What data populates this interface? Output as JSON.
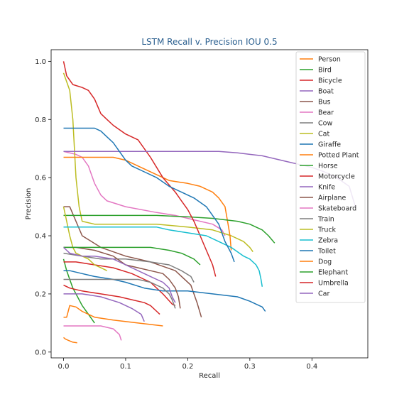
{
  "chart_data": {
    "type": "line",
    "title": "LSTM Recall v. Precision IOU 0.5",
    "xlabel": "Recall",
    "ylabel": "Precision",
    "xlim": [
      -0.02,
      0.49
    ],
    "ylim": [
      -0.02,
      1.04
    ],
    "xticks": [
      "0.0",
      "0.1",
      "0.2",
      "0.3",
      "0.4"
    ],
    "yticks": [
      "0.0",
      "0.2",
      "0.4",
      "0.6",
      "0.8",
      "1.0"
    ],
    "legend_position": "top-right",
    "grid": false,
    "series": [
      {
        "name": "Person",
        "color": "#ff7f0e",
        "points": [
          [
            0,
            0.05
          ],
          [
            0.003,
            0.045
          ],
          [
            0.008,
            0.04
          ],
          [
            0.015,
            0.034
          ],
          [
            0.022,
            0.032
          ]
        ]
      },
      {
        "name": "Bird",
        "color": "#2ca02c",
        "points": [
          [
            0,
            0.32
          ],
          [
            0.005,
            0.28
          ],
          [
            0.01,
            0.25
          ],
          [
            0.015,
            0.22
          ],
          [
            0.02,
            0.2
          ],
          [
            0.03,
            0.16
          ],
          [
            0.04,
            0.13
          ],
          [
            0.05,
            0.1
          ]
        ]
      },
      {
        "name": "Bicycle",
        "color": "#d62728",
        "points": [
          [
            0,
            0.31
          ],
          [
            0.02,
            0.31
          ],
          [
            0.05,
            0.3
          ],
          [
            0.08,
            0.29
          ],
          [
            0.11,
            0.27
          ],
          [
            0.14,
            0.24
          ],
          [
            0.16,
            0.2
          ],
          [
            0.175,
            0.165
          ],
          [
            0.18,
            0.16
          ]
        ]
      },
      {
        "name": "Boat",
        "color": "#9467bd",
        "points": [
          [
            0,
            0.2
          ],
          [
            0.03,
            0.2
          ],
          [
            0.06,
            0.19
          ],
          [
            0.09,
            0.17
          ],
          [
            0.11,
            0.15
          ],
          [
            0.125,
            0.13
          ],
          [
            0.13,
            0.105
          ]
        ]
      },
      {
        "name": "Bus",
        "color": "#8c564b",
        "points": [
          [
            0,
            0.5
          ],
          [
            0.01,
            0.5
          ],
          [
            0.03,
            0.4
          ],
          [
            0.06,
            0.36
          ],
          [
            0.1,
            0.33
          ],
          [
            0.14,
            0.31
          ],
          [
            0.18,
            0.28
          ],
          [
            0.205,
            0.23
          ],
          [
            0.215,
            0.17
          ],
          [
            0.222,
            0.12
          ]
        ]
      },
      {
        "name": "Bear",
        "color": "#e377c2",
        "points": [
          [
            0,
            0.69
          ],
          [
            0.02,
            0.68
          ],
          [
            0.03,
            0.67
          ],
          [
            0.04,
            0.64
          ],
          [
            0.05,
            0.58
          ],
          [
            0.06,
            0.54
          ],
          [
            0.07,
            0.52
          ],
          [
            0.1,
            0.5
          ],
          [
            0.15,
            0.48
          ],
          [
            0.18,
            0.47
          ],
          [
            0.2,
            0.46
          ],
          [
            0.22,
            0.45
          ],
          [
            0.24,
            0.44
          ],
          [
            0.255,
            0.42
          ],
          [
            0.26,
            0.4
          ]
        ]
      },
      {
        "name": "Cow",
        "color": "#7f7f7f",
        "points": [
          [
            0,
            0.34
          ],
          [
            0.03,
            0.33
          ],
          [
            0.06,
            0.32
          ],
          [
            0.1,
            0.32
          ],
          [
            0.14,
            0.31
          ],
          [
            0.17,
            0.3
          ],
          [
            0.19,
            0.28
          ],
          [
            0.205,
            0.26
          ],
          [
            0.21,
            0.24
          ]
        ]
      },
      {
        "name": "Cat",
        "color": "#bcbd22",
        "points": [
          [
            0,
            0.96
          ],
          [
            0.01,
            0.9
          ],
          [
            0.015,
            0.8
          ],
          [
            0.02,
            0.6
          ],
          [
            0.025,
            0.5
          ],
          [
            0.03,
            0.45
          ],
          [
            0.05,
            0.44
          ],
          [
            0.1,
            0.44
          ],
          [
            0.15,
            0.44
          ],
          [
            0.2,
            0.43
          ],
          [
            0.24,
            0.42
          ],
          [
            0.27,
            0.4
          ],
          [
            0.29,
            0.38
          ],
          [
            0.3,
            0.36
          ],
          [
            0.305,
            0.345
          ]
        ]
      },
      {
        "name": "Giraffe",
        "color": "#1f77b4",
        "points": [
          [
            0,
            0.28
          ],
          [
            0.01,
            0.28
          ],
          [
            0.03,
            0.27
          ],
          [
            0.05,
            0.26
          ],
          [
            0.08,
            0.25
          ],
          [
            0.1,
            0.24
          ],
          [
            0.13,
            0.22
          ],
          [
            0.16,
            0.21
          ],
          [
            0.2,
            0.21
          ],
          [
            0.24,
            0.2
          ],
          [
            0.28,
            0.19
          ],
          [
            0.3,
            0.175
          ],
          [
            0.31,
            0.165
          ],
          [
            0.32,
            0.155
          ],
          [
            0.325,
            0.14
          ]
        ]
      },
      {
        "name": "Potted Plant",
        "color": "#ff7f0e",
        "points": [
          [
            0,
            0.67
          ],
          [
            0.02,
            0.67
          ],
          [
            0.08,
            0.67
          ],
          [
            0.1,
            0.66
          ],
          [
            0.12,
            0.64
          ],
          [
            0.15,
            0.61
          ],
          [
            0.17,
            0.59
          ],
          [
            0.2,
            0.58
          ],
          [
            0.22,
            0.57
          ],
          [
            0.24,
            0.55
          ],
          [
            0.25,
            0.53
          ],
          [
            0.26,
            0.5
          ],
          [
            0.265,
            0.44
          ],
          [
            0.268,
            0.4
          ],
          [
            0.27,
            0.35
          ]
        ]
      },
      {
        "name": "Horse",
        "color": "#2ca02c",
        "points": [
          [
            0,
            0.47
          ],
          [
            0.05,
            0.47
          ],
          [
            0.1,
            0.47
          ],
          [
            0.15,
            0.47
          ],
          [
            0.2,
            0.465
          ],
          [
            0.24,
            0.46
          ],
          [
            0.28,
            0.45
          ],
          [
            0.3,
            0.44
          ],
          [
            0.31,
            0.43
          ],
          [
            0.32,
            0.42
          ],
          [
            0.33,
            0.4
          ],
          [
            0.34,
            0.375
          ]
        ]
      },
      {
        "name": "Motorcycle",
        "color": "#d62728",
        "points": [
          [
            0,
            1.0
          ],
          [
            0.005,
            0.95
          ],
          [
            0.015,
            0.92
          ],
          [
            0.03,
            0.91
          ],
          [
            0.04,
            0.9
          ],
          [
            0.05,
            0.87
          ],
          [
            0.06,
            0.82
          ],
          [
            0.07,
            0.8
          ],
          [
            0.08,
            0.78
          ],
          [
            0.1,
            0.75
          ],
          [
            0.12,
            0.73
          ],
          [
            0.14,
            0.67
          ],
          [
            0.16,
            0.6
          ],
          [
            0.18,
            0.55
          ],
          [
            0.19,
            0.52
          ],
          [
            0.2,
            0.49
          ],
          [
            0.21,
            0.45
          ],
          [
            0.22,
            0.4
          ],
          [
            0.23,
            0.35
          ],
          [
            0.24,
            0.3
          ],
          [
            0.245,
            0.26
          ]
        ]
      },
      {
        "name": "Knife",
        "color": "#9467bd",
        "points": [
          [
            0,
            0.69
          ],
          [
            0.1,
            0.69
          ],
          [
            0.2,
            0.69
          ],
          [
            0.25,
            0.69
          ],
          [
            0.28,
            0.685
          ],
          [
            0.3,
            0.68
          ],
          [
            0.32,
            0.675
          ],
          [
            0.34,
            0.665
          ],
          [
            0.36,
            0.655
          ],
          [
            0.38,
            0.645
          ],
          [
            0.4,
            0.635
          ],
          [
            0.42,
            0.62
          ],
          [
            0.44,
            0.6
          ],
          [
            0.46,
            0.57
          ],
          [
            0.47,
            0.5
          ]
        ]
      },
      {
        "name": "Airplane",
        "color": "#8c564b",
        "points": [
          [
            0,
            0.36
          ],
          [
            0.02,
            0.36
          ],
          [
            0.05,
            0.35
          ],
          [
            0.08,
            0.33
          ],
          [
            0.1,
            0.3
          ],
          [
            0.12,
            0.29
          ],
          [
            0.14,
            0.28
          ],
          [
            0.16,
            0.27
          ],
          [
            0.17,
            0.25
          ],
          [
            0.18,
            0.22
          ],
          [
            0.185,
            0.19
          ],
          [
            0.188,
            0.15
          ]
        ]
      },
      {
        "name": "Skateboard",
        "color": "#e377c2",
        "points": [
          [
            0,
            0.09
          ],
          [
            0.03,
            0.09
          ],
          [
            0.06,
            0.09
          ],
          [
            0.08,
            0.08
          ],
          [
            0.09,
            0.06
          ],
          [
            0.093,
            0.04
          ]
        ]
      },
      {
        "name": "Train",
        "color": "#7f7f7f",
        "points": [
          [
            0,
            0.25
          ],
          [
            0.03,
            0.25
          ],
          [
            0.08,
            0.25
          ],
          [
            0.12,
            0.25
          ],
          [
            0.14,
            0.24
          ],
          [
            0.16,
            0.22
          ],
          [
            0.17,
            0.2
          ],
          [
            0.175,
            0.18
          ],
          [
            0.18,
            0.15
          ]
        ]
      },
      {
        "name": "Truck",
        "color": "#bcbd22",
        "points": [
          [
            0,
            0.5
          ],
          [
            0.005,
            0.45
          ],
          [
            0.01,
            0.4
          ],
          [
            0.015,
            0.36
          ],
          [
            0.02,
            0.34
          ],
          [
            0.03,
            0.33
          ],
          [
            0.04,
            0.32
          ],
          [
            0.05,
            0.3
          ],
          [
            0.06,
            0.29
          ],
          [
            0.07,
            0.28
          ]
        ]
      },
      {
        "name": "Zebra",
        "color": "#17becf",
        "points": [
          [
            0,
            0.43
          ],
          [
            0.05,
            0.43
          ],
          [
            0.1,
            0.43
          ],
          [
            0.15,
            0.43
          ],
          [
            0.17,
            0.42
          ],
          [
            0.2,
            0.41
          ],
          [
            0.23,
            0.4
          ],
          [
            0.25,
            0.38
          ],
          [
            0.27,
            0.36
          ],
          [
            0.29,
            0.33
          ],
          [
            0.3,
            0.32
          ],
          [
            0.31,
            0.3
          ],
          [
            0.315,
            0.28
          ],
          [
            0.318,
            0.25
          ],
          [
            0.32,
            0.225
          ]
        ]
      },
      {
        "name": "Toilet",
        "color": "#1f77b4",
        "points": [
          [
            0,
            0.77
          ],
          [
            0.02,
            0.77
          ],
          [
            0.05,
            0.77
          ],
          [
            0.06,
            0.76
          ],
          [
            0.07,
            0.74
          ],
          [
            0.08,
            0.72
          ],
          [
            0.09,
            0.69
          ],
          [
            0.1,
            0.66
          ],
          [
            0.11,
            0.64
          ],
          [
            0.13,
            0.62
          ],
          [
            0.15,
            0.6
          ],
          [
            0.17,
            0.57
          ],
          [
            0.19,
            0.55
          ],
          [
            0.21,
            0.53
          ],
          [
            0.23,
            0.5
          ],
          [
            0.24,
            0.47
          ],
          [
            0.25,
            0.44
          ],
          [
            0.26,
            0.38
          ],
          [
            0.27,
            0.34
          ],
          [
            0.275,
            0.31
          ]
        ]
      },
      {
        "name": "Dog",
        "color": "#ff7f0e",
        "points": [
          [
            0,
            0.12
          ],
          [
            0.005,
            0.12
          ],
          [
            0.01,
            0.16
          ],
          [
            0.02,
            0.155
          ],
          [
            0.03,
            0.14
          ],
          [
            0.05,
            0.12
          ],
          [
            0.08,
            0.11
          ],
          [
            0.12,
            0.1
          ],
          [
            0.16,
            0.09
          ]
        ]
      },
      {
        "name": "Elephant",
        "color": "#2ca02c",
        "points": [
          [
            0,
            0.36
          ],
          [
            0.03,
            0.36
          ],
          [
            0.06,
            0.36
          ],
          [
            0.1,
            0.36
          ],
          [
            0.14,
            0.36
          ],
          [
            0.17,
            0.35
          ],
          [
            0.19,
            0.34
          ],
          [
            0.2,
            0.33
          ],
          [
            0.21,
            0.32
          ],
          [
            0.22,
            0.3
          ]
        ]
      },
      {
        "name": "Umbrella",
        "color": "#d62728",
        "points": [
          [
            0,
            0.23
          ],
          [
            0.01,
            0.22
          ],
          [
            0.03,
            0.21
          ],
          [
            0.06,
            0.2
          ],
          [
            0.09,
            0.19
          ],
          [
            0.11,
            0.18
          ],
          [
            0.13,
            0.17
          ],
          [
            0.14,
            0.16
          ],
          [
            0.15,
            0.14
          ],
          [
            0.155,
            0.13
          ]
        ]
      },
      {
        "name": "Car",
        "color": "#9467bd",
        "points": [
          [
            0,
            0.36
          ],
          [
            0.005,
            0.35
          ],
          [
            0.01,
            0.34
          ],
          [
            0.03,
            0.33
          ],
          [
            0.05,
            0.33
          ],
          [
            0.08,
            0.32
          ],
          [
            0.1,
            0.3
          ],
          [
            0.12,
            0.28
          ],
          [
            0.14,
            0.26
          ],
          [
            0.16,
            0.24
          ],
          [
            0.17,
            0.22
          ],
          [
            0.175,
            0.19
          ],
          [
            0.18,
            0.17
          ]
        ]
      }
    ]
  }
}
